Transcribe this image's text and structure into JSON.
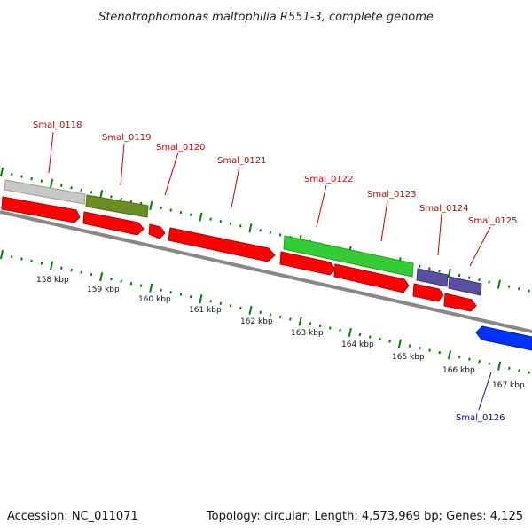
{
  "title": "Stenotrophomonas maltophilia R551-3, complete genome",
  "footer": {
    "accession": "Accession: NC_011071",
    "summary": "Topology: circular; Length: 4,573,969 bp; Genes: 4,125"
  },
  "colors": {
    "cds_red": "#ff0000",
    "label_red": "#cc0000",
    "label_blue": "#0000cc",
    "tick_green": "#008000",
    "backbone": "#888888"
  },
  "kbp_ticks": [
    "158 kbp",
    "159 kbp",
    "160 kbp",
    "161 kbp",
    "162 kbp",
    "163 kbp",
    "164 kbp",
    "165 kbp",
    "166 kbp",
    "167 kbp"
  ],
  "gene_labels": [
    {
      "text": "Smal_0118",
      "color": "#cc0000"
    },
    {
      "text": "Smal_0119",
      "color": "#cc0000"
    },
    {
      "text": "Smal_0120",
      "color": "#cc0000"
    },
    {
      "text": "Smal_0121",
      "color": "#cc0000"
    },
    {
      "text": "Smal_0122",
      "color": "#cc0000"
    },
    {
      "text": "Smal_0123",
      "color": "#cc0000"
    },
    {
      "text": "Smal_0124",
      "color": "#cc0000"
    },
    {
      "text": "Smal_0125",
      "color": "#cc0000"
    },
    {
      "text": "Smal_0126",
      "color": "#0000cc"
    }
  ],
  "feature_colors": {
    "top": [
      "#c8c8c8",
      "#6b8e23",
      "#33cc33",
      "#5a4fa0",
      "#5a4fa0"
    ],
    "bottom": [
      "#0033ff"
    ]
  }
}
